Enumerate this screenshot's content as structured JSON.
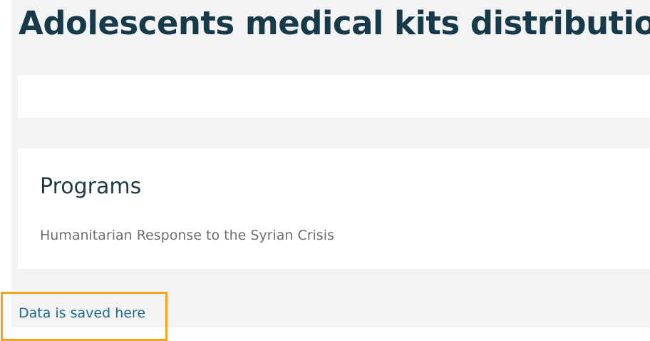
{
  "page": {
    "title": "Adolescents medical kits distribution"
  },
  "programs": {
    "heading": "Programs",
    "items": [
      "Humanitarian Response to the Syrian Crisis"
    ]
  },
  "footer": {
    "saved_link_label": "Data is saved here"
  },
  "colors": {
    "title": "#163a4a",
    "link": "#1d6a8a",
    "highlight": "#f5a31a",
    "page_background": "#f3f3f3",
    "card_background": "#ffffff"
  }
}
